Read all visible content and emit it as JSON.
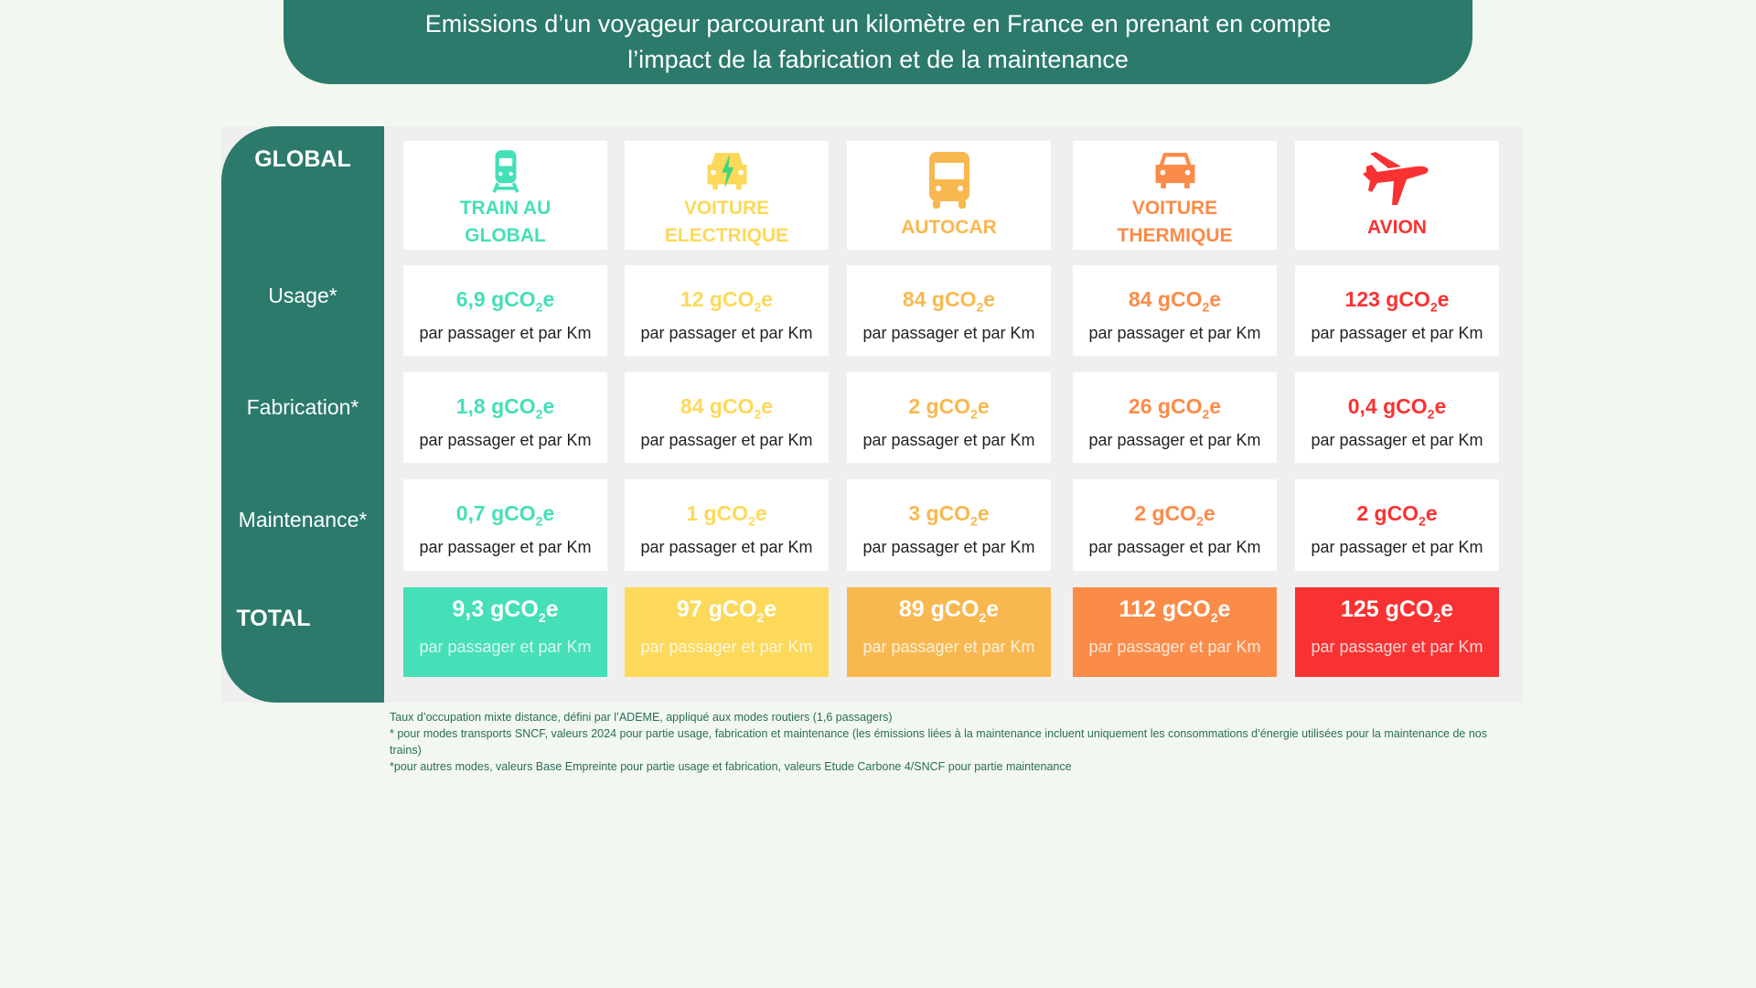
{
  "title": {
    "line1": "Emissions d’un voyageur parcourant un kilomètre en France en prenant en compte",
    "line2": "l’impact de la fabrication et de la maintenance"
  },
  "rows": {
    "global": "GLOBAL",
    "usage": "Usage*",
    "fabrication": "Fabrication*",
    "maintenance": "Maintenance*",
    "total": "TOTAL"
  },
  "unit_label": "par passager et par Km",
  "unit_suffix": "gCO",
  "unit_sub": "2",
  "unit_end": "e",
  "modes": [
    {
      "name": "TRAIN AU GLOBAL",
      "icon": "train-icon",
      "color": "#45dfb8",
      "usage": "6,9",
      "fabrication": "1,8",
      "maintenance": "0,7",
      "total": "9,3"
    },
    {
      "name": "VOITURE ELECTRIQUE",
      "icon": "electric-car-icon",
      "color": "#fcd95a",
      "usage": "12",
      "fabrication": "84",
      "maintenance": "1",
      "total": "97"
    },
    {
      "name": "AUTOCAR",
      "icon": "bus-icon",
      "color": "#f8b84f",
      "usage": "84",
      "fabrication": "2",
      "maintenance": "3",
      "total": "89"
    },
    {
      "name": "VOITURE THERMIQUE",
      "icon": "car-icon",
      "color": "#fb8b48",
      "usage": "84",
      "fabrication": "26",
      "maintenance": "2",
      "total": "112"
    },
    {
      "name": "AVION",
      "icon": "plane-icon",
      "color": "#f83232",
      "usage": "123",
      "fabrication": "0,4",
      "maintenance": "2",
      "total": "125"
    }
  ],
  "notes": [
    "Taux d’occupation mixte distance, défini par l’ADEME, appliqué aux modes routiers (1,6 passagers)",
    "* pour modes transports SNCF, valeurs 2024 pour partie usage, fabrication et maintenance (les émissions liées à la maintenance incluent uniquement les consommations d’énergie utilisées pour la maintenance de nos trains)",
    "*pour autres modes, valeurs Base Empreinte pour partie usage et fabrication, valeurs Etude Carbone 4/SNCF pour partie maintenance"
  ]
}
